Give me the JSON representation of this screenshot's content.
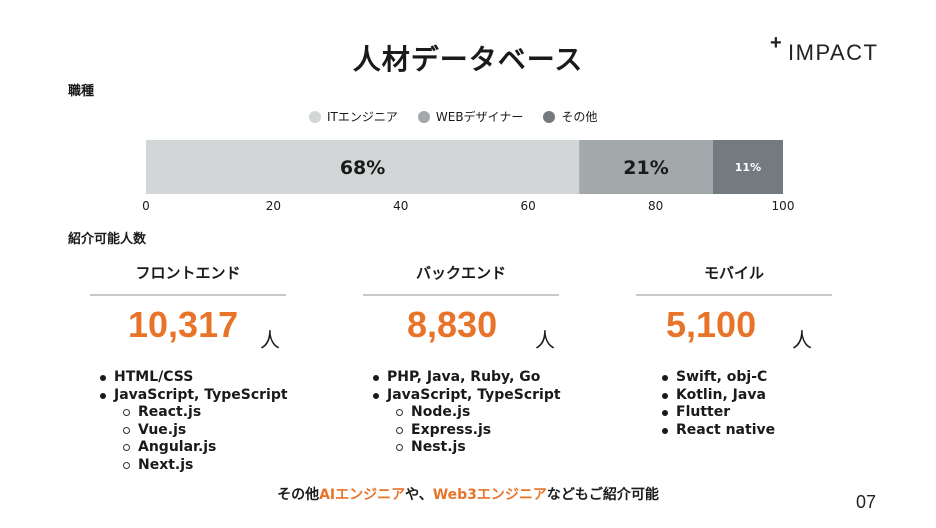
{
  "title": "人材データベース",
  "logo": {
    "plus": "+",
    "text": "IMPACT"
  },
  "occupation_label": "職種",
  "referral_label": "紹介可能人数",
  "colors": {
    "it": "#d3d6d6",
    "web": "#a3a8aa",
    "other": "#737b80",
    "accent": "#e8742a"
  },
  "chart_data": {
    "type": "bar",
    "orientation": "horizontal",
    "stacked": true,
    "categories": [
      "職種"
    ],
    "series": [
      {
        "name": "ITエンジニア",
        "values": [
          68
        ],
        "label": "68%",
        "color": "#d3d6d6"
      },
      {
        "name": "WEBデザイナー",
        "values": [
          21
        ],
        "label": "21%",
        "color": "#a3a8aa"
      },
      {
        "name": "その他",
        "values": [
          11
        ],
        "label": "11%",
        "color": "#737b80"
      }
    ],
    "xlim": [
      0,
      100
    ],
    "xticks": [
      "0",
      "20",
      "40",
      "60",
      "80",
      "100"
    ],
    "legend": "top-center",
    "grid": false
  },
  "columns": [
    {
      "heading": "フロントエンド",
      "count": "10,317",
      "unit": "人",
      "skills": [
        {
          "text": "HTML/CSS",
          "sub": false
        },
        {
          "text": "JavaScript, TypeScript",
          "sub": false
        },
        {
          "text": "React.js",
          "sub": true
        },
        {
          "text": "Vue.js",
          "sub": true
        },
        {
          "text": "Angular.js",
          "sub": true
        },
        {
          "text": "Next.js",
          "sub": true
        }
      ]
    },
    {
      "heading": "バックエンド",
      "count": "8,830",
      "unit": "人",
      "skills": [
        {
          "text": "PHP, Java, Ruby, Go",
          "sub": false
        },
        {
          "text": "JavaScript, TypeScript",
          "sub": false
        },
        {
          "text": "Node.js",
          "sub": true
        },
        {
          "text": "Express.js",
          "sub": true
        },
        {
          "text": "Nest.js",
          "sub": true
        }
      ]
    },
    {
      "heading": "モバイル",
      "count": "5,100",
      "unit": "人",
      "skills": [
        {
          "text": "Swift, obj-C",
          "sub": false
        },
        {
          "text": "Kotlin, Java",
          "sub": false
        },
        {
          "text": "Flutter",
          "sub": false
        },
        {
          "text": "React native",
          "sub": false
        }
      ]
    }
  ],
  "footer": {
    "prefix": "その他",
    "highlight1": "AIエンジニア",
    "middle": "や、",
    "highlight2": "Web3エンジニア",
    "suffix": "などもご紹介可能"
  },
  "page_number": "07"
}
